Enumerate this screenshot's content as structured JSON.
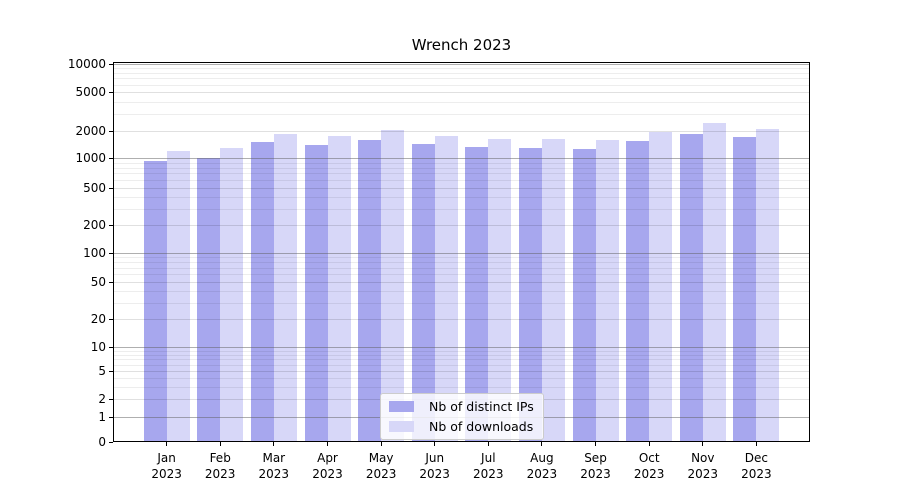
{
  "chart_data": {
    "type": "bar",
    "title": "Wrench 2023",
    "categories": [
      "Jan",
      "Feb",
      "Mar",
      "Apr",
      "May",
      "Jun",
      "Jul",
      "Aug",
      "Sep",
      "Oct",
      "Nov",
      "Dec"
    ],
    "category_year": "2023",
    "series": [
      {
        "name": "Nb of distinct IPs",
        "color": "#a7a7ee",
        "values": [
          940,
          1000,
          1500,
          1400,
          1590,
          1430,
          1320,
          1290,
          1260,
          1530,
          1850,
          1700
        ]
      },
      {
        "name": "Nb of downloads",
        "color": "#d7d7f8",
        "values": [
          1210,
          1290,
          1850,
          1780,
          2060,
          1760,
          1630,
          1620,
          1600,
          1950,
          2400,
          2100
        ]
      }
    ],
    "yscale": "symlog",
    "ylim": [
      0,
      10500
    ],
    "y_ticks": [
      10000,
      5000,
      2000,
      1000,
      500,
      200,
      100,
      50,
      20,
      10,
      5,
      2,
      1,
      0
    ],
    "grid": true,
    "legend_position": "lower center"
  }
}
